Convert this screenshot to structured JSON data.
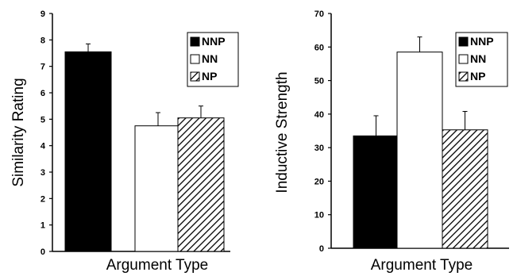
{
  "chart_data": [
    {
      "type": "bar",
      "title": "",
      "xlabel": "Argument Type",
      "ylabel": "Similarity Rating",
      "ylim": [
        0,
        9
      ],
      "yticks": [
        "0",
        "1",
        "2",
        "3",
        "4",
        "5",
        "6",
        "7",
        "8",
        "9"
      ],
      "grid": false,
      "legend_position": "top-right",
      "categories": [
        "NNP",
        "NN",
        "NP"
      ],
      "series": [
        {
          "name": "NNP",
          "pattern": "solid-black"
        },
        {
          "name": "NN",
          "pattern": "white"
        },
        {
          "name": "NP",
          "pattern": "diagonal-hatch"
        }
      ],
      "values": [
        7.55,
        4.75,
        5.05
      ],
      "errors": [
        0.3,
        0.5,
        0.45
      ]
    },
    {
      "type": "bar",
      "title": "",
      "xlabel": "Argument Type",
      "ylabel": "Inductive Strength",
      "ylim": [
        0,
        70
      ],
      "yticks": [
        "0",
        "10",
        "20",
        "30",
        "40",
        "50",
        "60",
        "70"
      ],
      "grid": false,
      "legend_position": "top-right",
      "categories": [
        "NNP",
        "NN",
        "NP"
      ],
      "series": [
        {
          "name": "NNP",
          "pattern": "solid-black"
        },
        {
          "name": "NN",
          "pattern": "white"
        },
        {
          "name": "NP",
          "pattern": "diagonal-hatch"
        }
      ],
      "values": [
        33.5,
        58.5,
        35.3
      ],
      "errors": [
        6,
        4.5,
        5.5
      ]
    }
  ]
}
